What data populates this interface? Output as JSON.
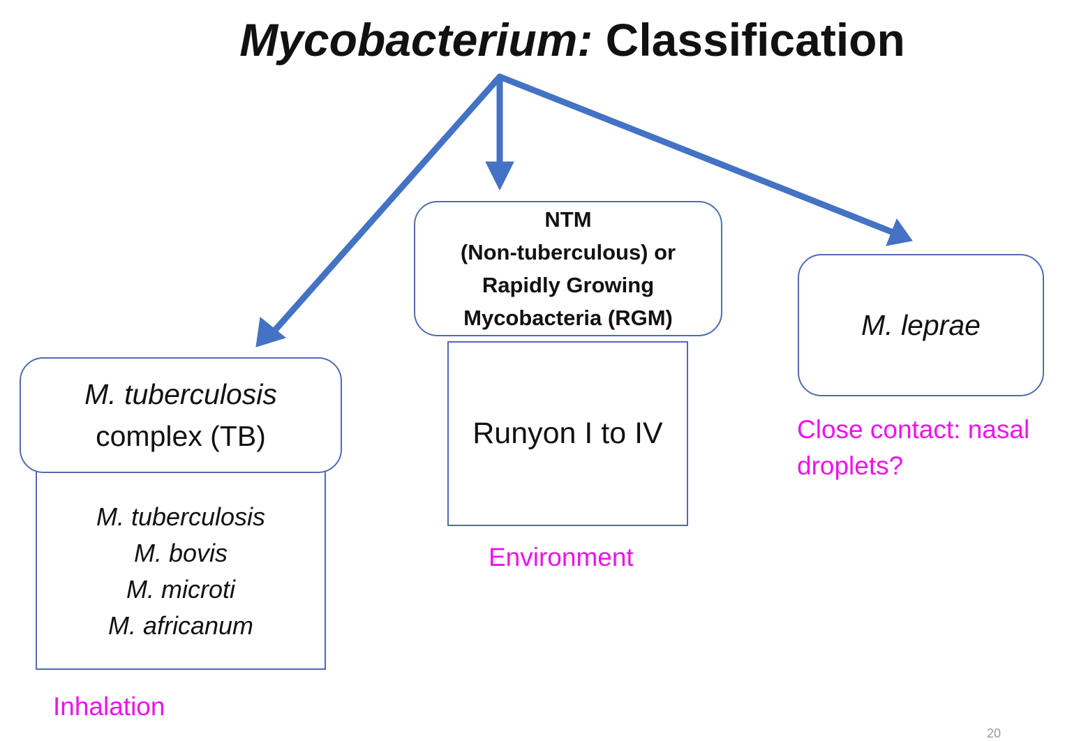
{
  "title": {
    "italic": "Mycobacterium:",
    "bold": "Classification"
  },
  "arrow_color": "#4472c4",
  "tb": {
    "header_line1": "M. tuberculosis",
    "header_line2": "complex (TB)",
    "species": [
      "M. tuberculosis",
      "M. bovis",
      "M. microti",
      "M. africanum"
    ],
    "note": "Inhalation"
  },
  "ntm": {
    "header_lines": [
      "NTM",
      "(Non-tuberculous) or",
      "Rapidly Growing",
      "Mycobacteria (RGM)"
    ],
    "body": "Runyon I to IV",
    "note": "Environment"
  },
  "leprae": {
    "header": "M. leprae",
    "note_lines": [
      "Close contact: nasal",
      "droplets?"
    ]
  },
  "page_number": "20"
}
